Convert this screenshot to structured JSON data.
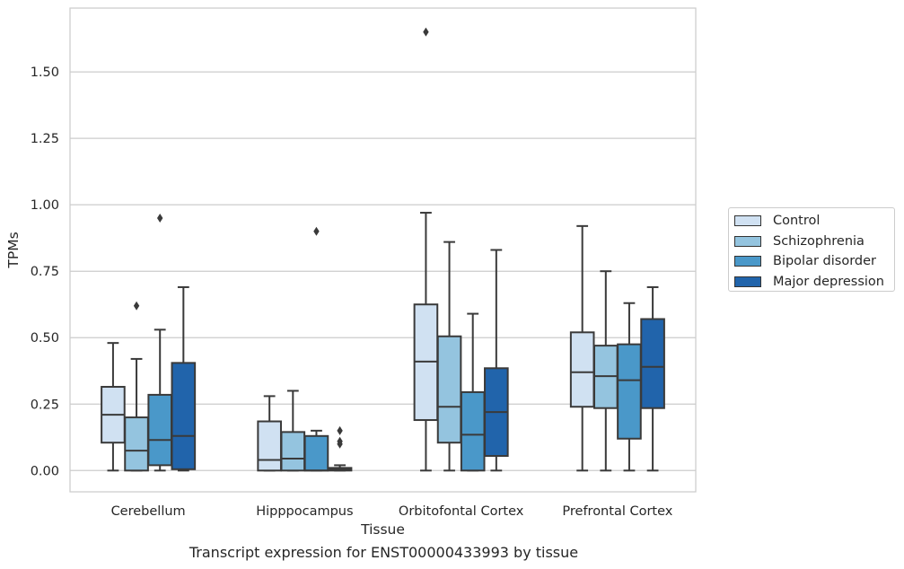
{
  "chart_data": {
    "type": "box",
    "title": "Transcript expression for ENST00000433993 by tissue",
    "xlabel": "Tissue",
    "ylabel": "TPMs",
    "ylim": [
      -0.08,
      1.74
    ],
    "yticks": [
      0.0,
      0.25,
      0.5,
      0.75,
      1.0,
      1.25,
      1.5
    ],
    "ytick_labels": [
      "0.00",
      "0.25",
      "0.50",
      "0.75",
      "1.00",
      "1.25",
      "1.50"
    ],
    "grid": "horizontal",
    "legend_position": "right-outside",
    "categories": [
      "Cerebellum",
      "Hipppocampus",
      "Orbitofontal Cortex",
      "Prefrontal Cortex"
    ],
    "series": [
      {
        "name": "Control",
        "color": "#d0e1f2",
        "boxes": [
          {
            "whisker_low": 0.0,
            "q1": 0.105,
            "median": 0.21,
            "q3": 0.315,
            "whisker_high": 0.48,
            "outliers": []
          },
          {
            "whisker_low": 0.0,
            "q1": 0.0,
            "median": 0.04,
            "q3": 0.185,
            "whisker_high": 0.28,
            "outliers": []
          },
          {
            "whisker_low": 0.0,
            "q1": 0.19,
            "median": 0.41,
            "q3": 0.625,
            "whisker_high": 0.97,
            "outliers": [
              1.65
            ]
          },
          {
            "whisker_low": 0.0,
            "q1": 0.24,
            "median": 0.37,
            "q3": 0.52,
            "whisker_high": 0.92,
            "outliers": []
          }
        ]
      },
      {
        "name": "Schizophrenia",
        "color": "#94c4df",
        "boxes": [
          {
            "whisker_low": 0.0,
            "q1": 0.0,
            "median": 0.075,
            "q3": 0.2,
            "whisker_high": 0.42,
            "outliers": [
              0.62
            ]
          },
          {
            "whisker_low": 0.0,
            "q1": 0.0,
            "median": 0.045,
            "q3": 0.145,
            "whisker_high": 0.3,
            "outliers": []
          },
          {
            "whisker_low": 0.0,
            "q1": 0.105,
            "median": 0.24,
            "q3": 0.505,
            "whisker_high": 0.86,
            "outliers": []
          },
          {
            "whisker_low": 0.0,
            "q1": 0.235,
            "median": 0.355,
            "q3": 0.47,
            "whisker_high": 0.75,
            "outliers": []
          }
        ]
      },
      {
        "name": "Bipolar disorder",
        "color": "#4a98c9",
        "boxes": [
          {
            "whisker_low": 0.0,
            "q1": 0.02,
            "median": 0.115,
            "q3": 0.285,
            "whisker_high": 0.53,
            "outliers": [
              0.95
            ]
          },
          {
            "whisker_low": 0.0,
            "q1": 0.0,
            "median": 0.0,
            "q3": 0.13,
            "whisker_high": 0.15,
            "outliers": [
              0.9
            ]
          },
          {
            "whisker_low": 0.0,
            "q1": 0.0,
            "median": 0.135,
            "q3": 0.295,
            "whisker_high": 0.59,
            "outliers": []
          },
          {
            "whisker_low": 0.0,
            "q1": 0.12,
            "median": 0.34,
            "q3": 0.475,
            "whisker_high": 0.63,
            "outliers": []
          }
        ]
      },
      {
        "name": "Major depression",
        "color": "#2164ab",
        "boxes": [
          {
            "whisker_low": 0.0,
            "q1": 0.005,
            "median": 0.13,
            "q3": 0.405,
            "whisker_high": 0.69,
            "outliers": []
          },
          {
            "whisker_low": 0.0,
            "q1": 0.0,
            "median": 0.005,
            "q3": 0.01,
            "whisker_high": 0.02,
            "outliers": [
              0.15,
              0.11,
              0.1
            ]
          },
          {
            "whisker_low": 0.0,
            "q1": 0.055,
            "median": 0.22,
            "q3": 0.385,
            "whisker_high": 0.83,
            "outliers": []
          },
          {
            "whisker_low": 0.0,
            "q1": 0.235,
            "median": 0.39,
            "q3": 0.57,
            "whisker_high": 0.69,
            "outliers": []
          }
        ]
      }
    ]
  }
}
